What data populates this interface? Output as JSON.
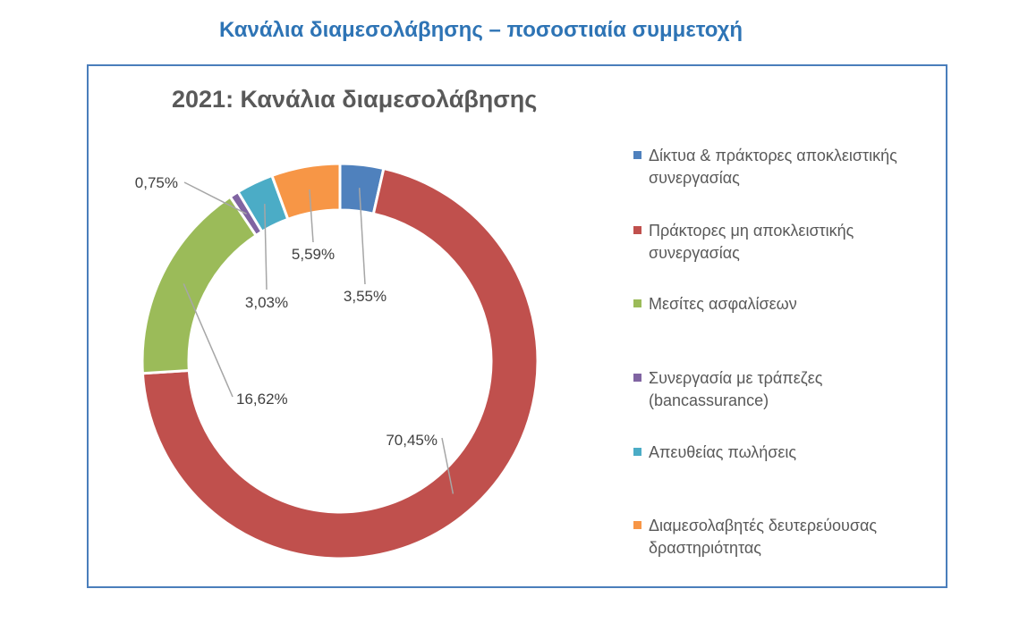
{
  "page": {
    "heading": "Κανάλια διαμεσολάβησης – ποσοστιαία συμμετοχή"
  },
  "chart_data": {
    "type": "pie",
    "variant": "donut",
    "title": "2021: Κανάλια διαμεσολάβησης",
    "legend_position": "right",
    "series": [
      {
        "values": [
          3.55,
          70.45,
          16.62,
          0.75,
          3.03,
          5.59
        ]
      }
    ],
    "categories": [
      "Δίκτυα & πράκτορες αποκλειστικής συνεργασίας",
      "Πράκτορες μη αποκλειστικής συνεργασίας",
      "Μεσίτες ασφαλίσεων",
      "Συνεργασία με τράπεζες (bancassurance)",
      "Απευθείας πωλήσεις",
      "Διαμεσολαβητές δευτερεύουσας δραστηριότητας"
    ],
    "data_labels": [
      "3,55%",
      "70,45%",
      "16,62%",
      "0,75%",
      "3,03%",
      "5,59%"
    ],
    "colors": [
      "#4f81bd",
      "#c0504d",
      "#9bbb59",
      "#8064a2",
      "#4bacc6",
      "#f79646"
    ]
  }
}
